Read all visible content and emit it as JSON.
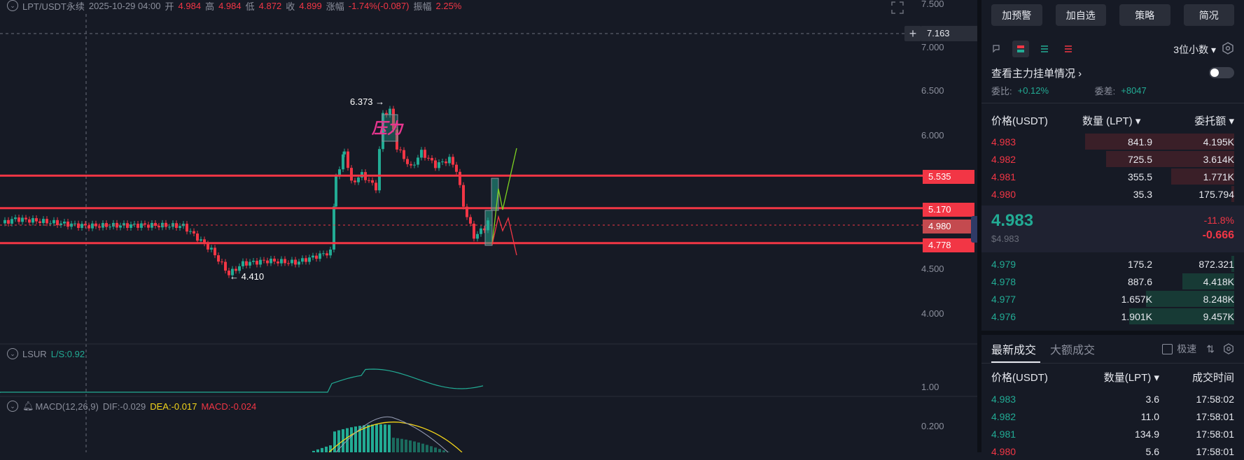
{
  "chart": {
    "symbol": "LPT/USDT永续",
    "datetime": "2025-10-29 04:00",
    "open_label": "开",
    "open": "4.984",
    "high_label": "高",
    "high": "4.984",
    "low_label": "低",
    "low": "4.872",
    "close_label": "收",
    "close": "4.899",
    "change_label": "涨幅",
    "change": "-1.74%(-0.087)",
    "amp_label": "振幅",
    "amp": "2.25%",
    "y_ticks": [
      "7.500",
      "7.000",
      "6.500",
      "6.000",
      "4.500",
      "4.000"
    ],
    "crosshair_price": "7.163",
    "levels": {
      "l1": "5.535",
      "l2": "5.170",
      "l3": "4.980",
      "l4": "4.778"
    },
    "high_mark": "6.373 →",
    "low_mark": "← 4.410",
    "pressure_text": "压力",
    "lsur_label": "LSUR",
    "lsur_value": "L/S:0.92",
    "lsur_tick": "1.00",
    "macd_label": "MACD(12,26,9)",
    "dif": "DIF:-0.029",
    "dea": "DEA:-0.017",
    "macd_val": "MACD:-0.024",
    "macd_tick": "0.200",
    "colors": {
      "up": "#22ab94",
      "down": "#f23645",
      "lsur": "#22ab94",
      "dea": "#f5d61a"
    }
  },
  "side": {
    "buttons": [
      "加预警",
      "加自选",
      "策略",
      "简况"
    ],
    "decimal": "3位小数 ▾",
    "mainforce": "查看主力挂单情况 ›",
    "ratio_label": "委比:",
    "ratio": "+0.12%",
    "diff_label": "委差:",
    "diff": "+8047",
    "ob_headers": {
      "price": "价格(USDT)",
      "qty": "数量 (LPT) ▾",
      "amount": "委托额 ▾"
    },
    "asks": [
      {
        "price": "4.983",
        "qty": "841.9",
        "amount": "4.195K"
      },
      {
        "price": "4.982",
        "qty": "725.5",
        "amount": "3.614K"
      },
      {
        "price": "4.981",
        "qty": "355.5",
        "amount": "1.771K"
      },
      {
        "price": "4.980",
        "qty": "35.3",
        "amount": "175.794"
      }
    ],
    "last_price": "4.983",
    "last_usd": "$4.983",
    "pct": "-11.8%",
    "chg": "-0.666",
    "bids": [
      {
        "price": "4.979",
        "qty": "175.2",
        "amount": "872.321"
      },
      {
        "price": "4.978",
        "qty": "887.6",
        "amount": "4.418K"
      },
      {
        "price": "4.977",
        "qty": "1.657K",
        "amount": "8.248K"
      },
      {
        "price": "4.976",
        "qty": "1.901K",
        "amount": "9.457K"
      }
    ],
    "trade_tabs": [
      "最新成交",
      "大额成交"
    ],
    "fast_label": "极速",
    "trade_headers": {
      "price": "价格(USDT)",
      "qty": "数量(LPT) ▾",
      "time": "成交时间"
    },
    "trades": [
      {
        "price": "4.983",
        "qty": "3.6",
        "time": "17:58:02"
      },
      {
        "price": "4.982",
        "qty": "11.0",
        "time": "17:58:01"
      },
      {
        "price": "4.981",
        "qty": "134.9",
        "time": "17:58:01"
      },
      {
        "price": "4.980",
        "qty": "5.6",
        "time": "17:58:01"
      }
    ]
  }
}
